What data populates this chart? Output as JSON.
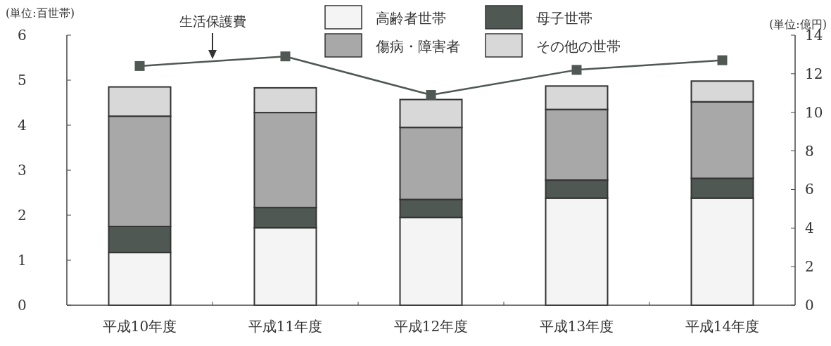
{
  "chart_data": {
    "type": "bar",
    "stacked": true,
    "ylabel": "(単位:百世帯)",
    "y2label": "(単位:億円)",
    "categories": [
      "平成10年度",
      "平成11年度",
      "平成12年度",
      "平成13年度",
      "平成14年度"
    ],
    "series": [
      {
        "name": "高齢者世帯",
        "color": "#f4f4f4",
        "values": [
          1.17,
          1.72,
          1.95,
          2.38,
          2.38
        ]
      },
      {
        "name": "母子世帯",
        "color": "#4f5853",
        "values": [
          0.58,
          0.45,
          0.4,
          0.4,
          0.44
        ]
      },
      {
        "name": "傷病・障害者",
        "color": "#a8a8a8",
        "values": [
          2.45,
          2.11,
          1.6,
          1.57,
          1.7
        ]
      },
      {
        "name": "その他の世帯",
        "color": "#d8d8d8",
        "values": [
          0.65,
          0.55,
          0.62,
          0.52,
          0.46
        ]
      },
      {
        "name": "生活保護費",
        "type": "line",
        "axis": "y2",
        "color": "#4f5853",
        "marker": "square",
        "line_style": "solid",
        "values": [
          12.4,
          12.9,
          10.9,
          12.2,
          12.7
        ]
      }
    ],
    "ylim": [
      0,
      6
    ],
    "yticks": [
      0,
      1,
      2,
      3,
      4,
      5,
      6
    ],
    "y2lim": [
      0,
      14
    ],
    "y2ticks": [
      0,
      2,
      4,
      6,
      8,
      10,
      12,
      14
    ],
    "legend": "top"
  }
}
